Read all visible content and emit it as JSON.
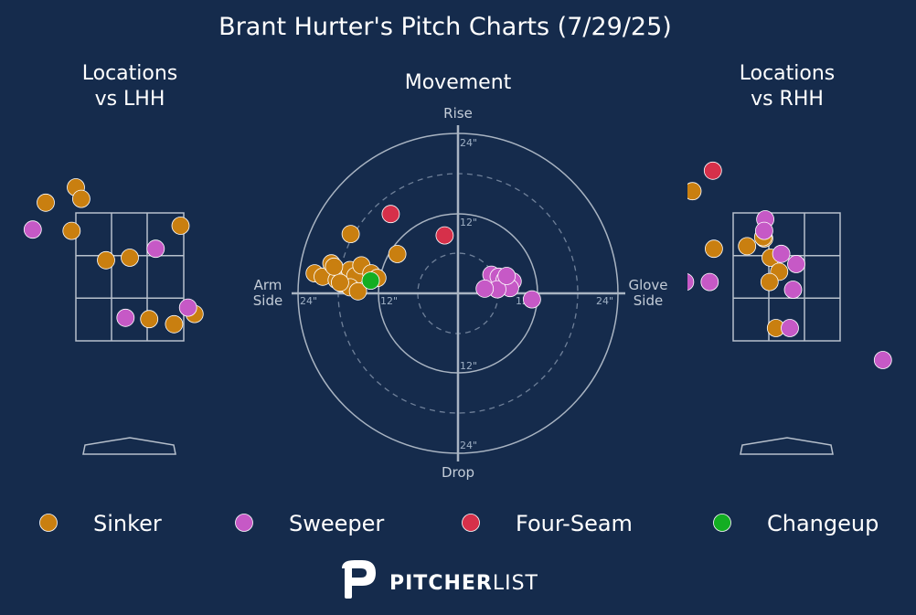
{
  "title": "Brant Hurter's Pitch Charts (7/29/25)",
  "panels": {
    "lhh": {
      "line1": "Locations",
      "line2": "vs LHH"
    },
    "movement": {
      "title": "Movement"
    },
    "rhh": {
      "line1": "Locations",
      "line2": "vs RHH"
    }
  },
  "movement_axes": {
    "rise": "Rise",
    "drop": "Drop",
    "arm_line1": "Arm",
    "arm_line2": "Side",
    "glove_line1": "Glove",
    "glove_line2": "Side",
    "ring_labels": {
      "r12": "12\"",
      "r24": "24\""
    }
  },
  "legend": [
    {
      "name": "Sinker",
      "color": "#c97f10"
    },
    {
      "name": "Sweeper",
      "color": "#c659c6"
    },
    {
      "name": "Four-Seam",
      "color": "#d6304a"
    },
    {
      "name": "Changeup",
      "color": "#13ae22"
    }
  ],
  "brand": {
    "bold": "PITCHER",
    "light": "LIST"
  },
  "chart_data": [
    {
      "type": "scatter",
      "panel": "Locations vs LHH",
      "units": "strike-zone widths/heights (0-1 = zone)",
      "series": [
        {
          "name": "Sinker",
          "points": [
            [
              -0.28,
              1.08
            ],
            [
              0.0,
              1.2
            ],
            [
              0.05,
              1.11
            ],
            [
              -0.04,
              0.86
            ],
            [
              0.28,
              0.63
            ],
            [
              0.5,
              0.65
            ],
            [
              0.97,
              0.9
            ],
            [
              0.68,
              0.17
            ],
            [
              0.91,
              0.13
            ],
            [
              1.1,
              0.21
            ]
          ]
        },
        {
          "name": "Sweeper",
          "points": [
            [
              -0.4,
              0.87
            ],
            [
              0.74,
              0.72
            ],
            [
              1.04,
              0.26
            ],
            [
              0.46,
              0.18
            ]
          ]
        }
      ]
    },
    {
      "type": "scatter",
      "panel": "Movement",
      "units": "inches (x: arm side negative, glove side positive; y: rise positive)",
      "xlim": [
        -24,
        24
      ],
      "ylim": [
        -24,
        24
      ],
      "series": [
        {
          "name": "Sinker",
          "points": [
            [
              -21.5,
              3.0
            ],
            [
              -20.3,
              2.5
            ],
            [
              -19.0,
              4.5
            ],
            [
              -18.2,
              2.0
            ],
            [
              -17.5,
              1.5
            ],
            [
              -16.2,
              3.5
            ],
            [
              -15.4,
              2.6
            ],
            [
              -16.2,
              0.9
            ],
            [
              -17.7,
              1.6
            ],
            [
              -18.6,
              4.0
            ],
            [
              -14.5,
              4.2
            ],
            [
              -13.0,
              3.0
            ],
            [
              -12.1,
              2.3
            ],
            [
              -15.0,
              0.3
            ],
            [
              -9.1,
              5.9
            ],
            [
              -16.1,
              8.9
            ]
          ]
        },
        {
          "name": "Sweeper",
          "points": [
            [
              5.0,
              2.8
            ],
            [
              6.1,
              2.5
            ],
            [
              7.0,
              2.0
            ],
            [
              8.2,
              1.8
            ],
            [
              7.8,
              0.8
            ],
            [
              5.9,
              0.6
            ],
            [
              4.0,
              0.7
            ],
            [
              7.3,
              2.6
            ],
            [
              11.1,
              -0.9
            ]
          ]
        },
        {
          "name": "Four-Seam",
          "points": [
            [
              -10.1,
              11.9
            ],
            [
              -2.0,
              8.7
            ]
          ]
        },
        {
          "name": "Changeup",
          "points": [
            [
              -13.1,
              1.9
            ]
          ]
        }
      ]
    },
    {
      "type": "scatter",
      "panel": "Locations vs RHH",
      "units": "strike-zone widths/heights (0-1 = zone)",
      "series": [
        {
          "name": "Sinker",
          "points": [
            [
              -0.38,
              1.17
            ],
            [
              -0.18,
              0.72
            ],
            [
              0.13,
              0.74
            ],
            [
              0.29,
              0.8
            ],
            [
              0.35,
              0.65
            ],
            [
              0.43,
              0.54
            ],
            [
              0.34,
              0.46
            ],
            [
              0.4,
              0.1
            ],
            [
              0.28,
              0.81
            ]
          ]
        },
        {
          "name": "Sweeper",
          "points": [
            [
              0.3,
              0.95
            ],
            [
              0.29,
              0.86
            ],
            [
              0.45,
              0.68
            ],
            [
              0.59,
              0.6
            ],
            [
              0.56,
              0.4
            ],
            [
              0.53,
              0.1
            ],
            [
              -0.22,
              0.46
            ],
            [
              -0.45,
              0.46
            ],
            [
              1.4,
              -0.15
            ]
          ]
        },
        {
          "name": "Four-Seam",
          "points": [
            [
              -0.19,
              1.33
            ]
          ]
        }
      ]
    }
  ]
}
